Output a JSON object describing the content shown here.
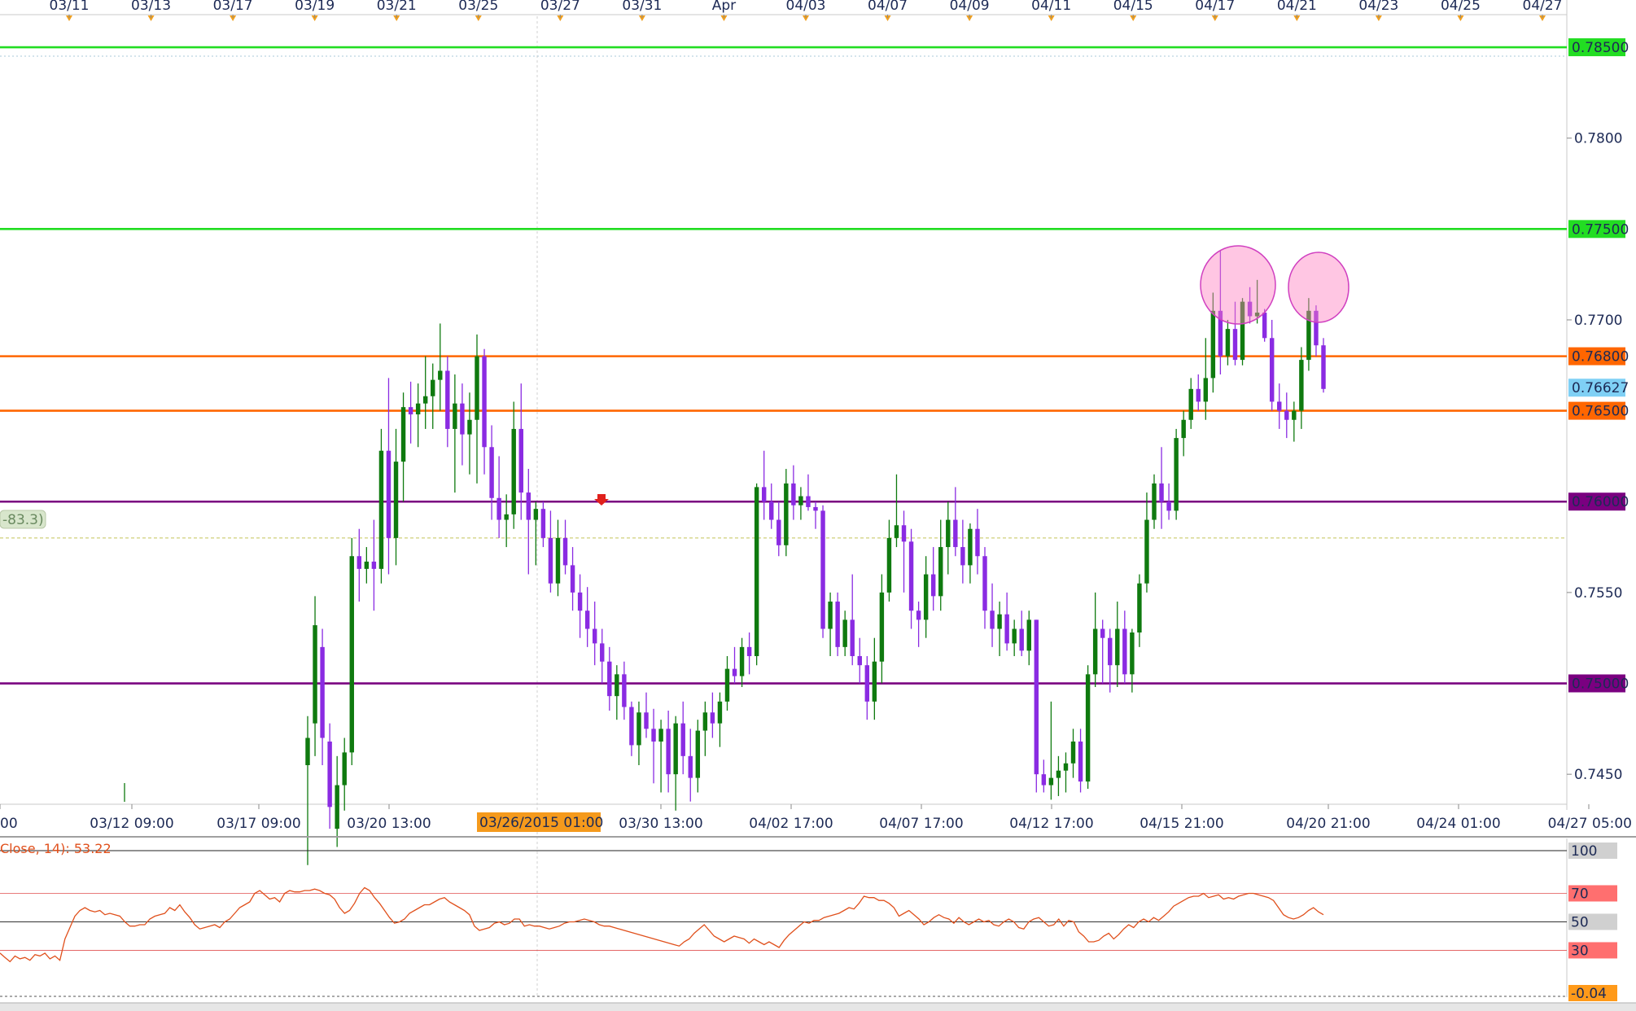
{
  "chart_data": {
    "type": "candlestick",
    "instrument_timeframe": "H4",
    "price_axis": {
      "ylim": [
        0.74335,
        0.7876
      ],
      "ticks": [
        "0.7450",
        "0.7550",
        "0.7700",
        "0.7800"
      ]
    },
    "levels": [
      {
        "price": 0.785,
        "label": "0.78500",
        "color": "#22dd22"
      },
      {
        "price": 0.775,
        "label": "0.77500",
        "color": "#22dd22"
      },
      {
        "price": 0.768,
        "label": "0.76800",
        "color": "#ff6600"
      },
      {
        "price": 0.765,
        "label": "0.76500",
        "color": "#ff6600"
      },
      {
        "price": 0.76,
        "label": "0.76000",
        "color": "#7a0080"
      },
      {
        "price": 0.75,
        "label": "0.75000",
        "color": "#7a0080"
      }
    ],
    "current_price": {
      "price": 0.76627,
      "label": "0.76627",
      "color": "#7fd0f5"
    },
    "reference_line": {
      "price": 0.758,
      "tag": "-83.3)"
    },
    "top_date_ticks": [
      "03/11",
      "03/13",
      "03/17",
      "03/19",
      "03/21",
      "03/25",
      "03/27",
      "03/31",
      "Apr",
      "04/03",
      "04/07",
      "04/09",
      "04/11",
      "04/15",
      "04/17",
      "04/21",
      "04/23",
      "04/25",
      "04/27"
    ],
    "bottom_time_ticks": [
      "00",
      "03/12 09:00",
      "03/17 09:00",
      "03/20 13:00",
      "03/30 13:00",
      "04/02 17:00",
      "04/07 17:00",
      "04/12 17:00",
      "04/15 21:00",
      "04/20 21:00",
      "04/24 01:00",
      "04/27 05:00"
    ],
    "cursor_label": "03/26/2015 01:00",
    "bull_color": "#0f7a0f",
    "bear_color": "#8a2be2",
    "candles": [
      [
        0.7455,
        0.7482,
        0.74,
        0.747
      ],
      [
        0.7478,
        0.7548,
        0.746,
        0.7532
      ],
      [
        0.752,
        0.753,
        0.7455,
        0.747
      ],
      [
        0.7468,
        0.7478,
        0.742,
        0.7432
      ],
      [
        0.742,
        0.746,
        0.741,
        0.7444
      ],
      [
        0.7444,
        0.747,
        0.743,
        0.7462
      ],
      [
        0.7462,
        0.758,
        0.7455,
        0.757
      ],
      [
        0.757,
        0.7585,
        0.7545,
        0.7563
      ],
      [
        0.7563,
        0.7575,
        0.7555,
        0.7567
      ],
      [
        0.7567,
        0.759,
        0.754,
        0.7563
      ],
      [
        0.7563,
        0.764,
        0.7555,
        0.7628
      ],
      [
        0.7628,
        0.7668,
        0.756,
        0.758
      ],
      [
        0.758,
        0.764,
        0.7565,
        0.7622
      ],
      [
        0.7622,
        0.766,
        0.76,
        0.7652
      ],
      [
        0.7652,
        0.7666,
        0.7632,
        0.7648
      ],
      [
        0.7648,
        0.7665,
        0.763,
        0.7654
      ],
      [
        0.7654,
        0.768,
        0.764,
        0.7658
      ],
      [
        0.7658,
        0.7676,
        0.764,
        0.7667
      ],
      [
        0.7667,
        0.7698,
        0.765,
        0.7672
      ],
      [
        0.7672,
        0.768,
        0.763,
        0.764
      ],
      [
        0.764,
        0.767,
        0.7605,
        0.7654
      ],
      [
        0.7654,
        0.7665,
        0.762,
        0.7637
      ],
      [
        0.7637,
        0.766,
        0.7615,
        0.7645
      ],
      [
        0.7645,
        0.7692,
        0.761,
        0.768
      ],
      [
        0.768,
        0.7684,
        0.7615,
        0.763
      ],
      [
        0.763,
        0.7642,
        0.759,
        0.7602
      ],
      [
        0.7602,
        0.7625,
        0.758,
        0.759
      ],
      [
        0.759,
        0.7604,
        0.7575,
        0.7593
      ],
      [
        0.7593,
        0.7655,
        0.7585,
        0.764
      ],
      [
        0.764,
        0.7665,
        0.759,
        0.7605
      ],
      [
        0.7605,
        0.7618,
        0.756,
        0.759
      ],
      [
        0.759,
        0.76,
        0.7565,
        0.7596
      ],
      [
        0.7596,
        0.76,
        0.7575,
        0.758
      ],
      [
        0.758,
        0.7595,
        0.755,
        0.7555
      ],
      [
        0.7555,
        0.759,
        0.7548,
        0.758
      ],
      [
        0.758,
        0.759,
        0.756,
        0.7565
      ],
      [
        0.7565,
        0.7575,
        0.754,
        0.755
      ],
      [
        0.755,
        0.756,
        0.7525,
        0.754
      ],
      [
        0.754,
        0.7553,
        0.752,
        0.753
      ],
      [
        0.753,
        0.7545,
        0.751,
        0.7522
      ],
      [
        0.7522,
        0.753,
        0.75,
        0.7512
      ],
      [
        0.7512,
        0.752,
        0.7485,
        0.7493
      ],
      [
        0.7493,
        0.751,
        0.748,
        0.7505
      ],
      [
        0.7505,
        0.7512,
        0.748,
        0.7487
      ],
      [
        0.7487,
        0.749,
        0.746,
        0.7466
      ],
      [
        0.7466,
        0.749,
        0.7455,
        0.7484
      ],
      [
        0.7484,
        0.7495,
        0.747,
        0.7475
      ],
      [
        0.7475,
        0.7486,
        0.7445,
        0.7468
      ],
      [
        0.7468,
        0.748,
        0.744,
        0.7475
      ],
      [
        0.7475,
        0.7485,
        0.744,
        0.745
      ],
      [
        0.745,
        0.7482,
        0.743,
        0.7478
      ],
      [
        0.7478,
        0.749,
        0.745,
        0.746
      ],
      [
        0.746,
        0.7475,
        0.7435,
        0.7448
      ],
      [
        0.7448,
        0.748,
        0.744,
        0.7474
      ],
      [
        0.7474,
        0.749,
        0.746,
        0.7484
      ],
      [
        0.7484,
        0.7495,
        0.747,
        0.7478
      ],
      [
        0.7478,
        0.7495,
        0.7465,
        0.749
      ],
      [
        0.749,
        0.7515,
        0.7485,
        0.7508
      ],
      [
        0.7508,
        0.752,
        0.75,
        0.7504
      ],
      [
        0.7504,
        0.7525,
        0.7498,
        0.752
      ],
      [
        0.752,
        0.7528,
        0.7505,
        0.7515
      ],
      [
        0.7515,
        0.761,
        0.751,
        0.7608
      ],
      [
        0.7608,
        0.7628,
        0.759,
        0.76
      ],
      [
        0.76,
        0.761,
        0.7585,
        0.759
      ],
      [
        0.759,
        0.76,
        0.757,
        0.7576
      ],
      [
        0.7576,
        0.7618,
        0.757,
        0.761
      ],
      [
        0.761,
        0.762,
        0.759,
        0.7598
      ],
      [
        0.7598,
        0.7608,
        0.759,
        0.7603
      ],
      [
        0.7603,
        0.7615,
        0.7595,
        0.7597
      ],
      [
        0.7597,
        0.76,
        0.7585,
        0.7595
      ],
      [
        0.7595,
        0.7598,
        0.7525,
        0.753
      ],
      [
        0.753,
        0.755,
        0.7515,
        0.7545
      ],
      [
        0.7545,
        0.755,
        0.7515,
        0.752
      ],
      [
        0.752,
        0.754,
        0.7515,
        0.7535
      ],
      [
        0.7535,
        0.756,
        0.751,
        0.7515
      ],
      [
        0.7515,
        0.7525,
        0.75,
        0.751
      ],
      [
        0.751,
        0.7515,
        0.748,
        0.749
      ],
      [
        0.749,
        0.7525,
        0.748,
        0.7512
      ],
      [
        0.7512,
        0.756,
        0.75,
        0.755
      ],
      [
        0.755,
        0.759,
        0.7545,
        0.758
      ],
      [
        0.758,
        0.7615,
        0.7575,
        0.7587
      ],
      [
        0.7587,
        0.7595,
        0.755,
        0.7578
      ],
      [
        0.7578,
        0.7585,
        0.753,
        0.754
      ],
      [
        0.754,
        0.7545,
        0.752,
        0.7535
      ],
      [
        0.7535,
        0.757,
        0.7525,
        0.756
      ],
      [
        0.756,
        0.7575,
        0.754,
        0.7548
      ],
      [
        0.7548,
        0.759,
        0.754,
        0.7575
      ],
      [
        0.7575,
        0.76,
        0.756,
        0.759
      ],
      [
        0.759,
        0.7608,
        0.757,
        0.7575
      ],
      [
        0.7575,
        0.759,
        0.7555,
        0.7565
      ],
      [
        0.7565,
        0.7588,
        0.7555,
        0.7585
      ],
      [
        0.7585,
        0.7596,
        0.756,
        0.757
      ],
      [
        0.757,
        0.7575,
        0.753,
        0.754
      ],
      [
        0.754,
        0.7555,
        0.752,
        0.753
      ],
      [
        0.753,
        0.7545,
        0.7515,
        0.7538
      ],
      [
        0.7538,
        0.755,
        0.7518,
        0.7522
      ],
      [
        0.7522,
        0.7535,
        0.7515,
        0.753
      ],
      [
        0.753,
        0.754,
        0.7515,
        0.7518
      ],
      [
        0.7518,
        0.754,
        0.751,
        0.7535
      ],
      [
        0.7535,
        0.7535,
        0.744,
        0.745
      ],
      [
        0.745,
        0.7458,
        0.744,
        0.7444
      ],
      [
        0.7444,
        0.749,
        0.7436,
        0.7448
      ],
      [
        0.7448,
        0.746,
        0.7438,
        0.7452
      ],
      [
        0.7452,
        0.7462,
        0.744,
        0.7456
      ],
      [
        0.7456,
        0.7475,
        0.7448,
        0.7468
      ],
      [
        0.7468,
        0.7475,
        0.744,
        0.7446
      ],
      [
        0.7446,
        0.751,
        0.7442,
        0.7505
      ],
      [
        0.7505,
        0.755,
        0.7498,
        0.753
      ],
      [
        0.753,
        0.7535,
        0.75,
        0.7525
      ],
      [
        0.7525,
        0.753,
        0.7495,
        0.751
      ],
      [
        0.751,
        0.7545,
        0.7498,
        0.753
      ],
      [
        0.753,
        0.754,
        0.75,
        0.7505
      ],
      [
        0.7505,
        0.753,
        0.7495,
        0.7528
      ],
      [
        0.7528,
        0.756,
        0.752,
        0.7555
      ],
      [
        0.7555,
        0.7605,
        0.755,
        0.759
      ],
      [
        0.759,
        0.7615,
        0.7585,
        0.761
      ],
      [
        0.761,
        0.763,
        0.7585,
        0.76
      ],
      [
        0.76,
        0.761,
        0.759,
        0.7595
      ],
      [
        0.7595,
        0.764,
        0.759,
        0.7635
      ],
      [
        0.7635,
        0.765,
        0.7625,
        0.7645
      ],
      [
        0.7645,
        0.7668,
        0.764,
        0.7662
      ],
      [
        0.7662,
        0.767,
        0.765,
        0.7655
      ],
      [
        0.7655,
        0.769,
        0.7645,
        0.7668
      ],
      [
        0.7668,
        0.7715,
        0.766,
        0.7705
      ],
      [
        0.7705,
        0.7738,
        0.767,
        0.768
      ],
      [
        0.768,
        0.77,
        0.7675,
        0.7695
      ],
      [
        0.7695,
        0.771,
        0.7675,
        0.7678
      ],
      [
        0.7678,
        0.7712,
        0.7675,
        0.771
      ],
      [
        0.771,
        0.7718,
        0.7698,
        0.7702
      ],
      [
        0.7702,
        0.7722,
        0.7698,
        0.7704
      ],
      [
        0.7704,
        0.7706,
        0.7688,
        0.769
      ],
      [
        0.769,
        0.77,
        0.765,
        0.7655
      ],
      [
        0.7655,
        0.7665,
        0.764,
        0.765
      ],
      [
        0.765,
        0.766,
        0.7635,
        0.7645
      ],
      [
        0.7645,
        0.7655,
        0.7633,
        0.765
      ],
      [
        0.765,
        0.7685,
        0.764,
        0.7678
      ],
      [
        0.7678,
        0.7712,
        0.7672,
        0.7705
      ],
      [
        0.7705,
        0.7708,
        0.768,
        0.7686
      ],
      [
        0.7686,
        0.769,
        0.766,
        0.7662
      ]
    ],
    "rsi": {
      "label": "Close, 14): 53.22",
      "levels": [
        {
          "value": 100,
          "label": "100",
          "color": "#d0d0d0"
        },
        {
          "value": 70,
          "label": "70",
          "color": "#ff6f6f"
        },
        {
          "value": 50,
          "label": "50",
          "color": "#d0d0d0"
        },
        {
          "value": 30,
          "label": "30",
          "color": "#ff6f6f"
        },
        {
          "value": -0.04,
          "label": "-0.04",
          "color": "#ff9a1a"
        }
      ],
      "line_color": "#e0501c",
      "values": [
        28,
        25,
        22,
        26,
        24,
        25,
        23,
        27,
        26,
        28,
        24,
        26,
        23,
        38,
        46,
        54,
        58,
        60,
        58,
        57,
        58,
        55,
        56,
        55,
        54,
        50,
        47,
        47,
        48,
        48,
        52,
        54,
        55,
        56,
        60,
        58,
        62,
        57,
        53,
        48,
        45,
        46,
        47,
        48,
        46,
        50,
        52,
        56,
        60,
        62,
        64,
        70,
        72,
        69,
        66,
        67,
        64,
        70,
        72,
        71,
        71,
        72,
        72,
        73,
        72,
        70,
        69,
        66,
        60,
        56,
        58,
        63,
        70,
        74,
        72,
        67,
        63,
        58,
        53,
        49,
        50,
        52,
        56,
        58,
        60,
        62,
        62,
        64,
        66,
        67,
        64,
        62,
        60,
        58,
        55,
        47,
        44,
        45,
        46,
        49,
        50,
        48,
        49,
        52,
        52,
        47,
        48,
        47,
        47,
        46,
        45,
        46,
        47,
        49,
        50,
        50,
        51,
        52,
        51,
        50,
        48,
        47,
        47,
        46,
        45,
        44,
        43,
        42,
        41,
        40,
        39,
        38,
        37,
        36,
        35,
        34,
        33,
        36,
        38,
        42,
        45,
        48,
        44,
        40,
        38,
        36,
        38,
        40,
        39,
        38,
        35,
        38,
        36,
        34,
        36,
        34,
        32,
        37,
        41,
        44,
        47,
        50,
        49,
        51,
        51,
        53,
        54,
        55,
        56,
        58,
        60,
        59,
        63,
        68,
        67,
        67,
        65,
        65,
        63,
        60,
        54,
        56,
        58,
        55,
        52,
        48,
        50,
        53,
        55,
        53,
        52,
        49,
        53,
        50,
        48,
        50,
        52,
        50,
        51,
        48,
        47,
        50,
        52,
        50,
        46,
        45,
        50,
        52,
        53,
        50,
        47,
        48,
        52,
        47,
        51,
        50,
        43,
        40,
        36,
        36,
        37,
        40,
        42,
        38,
        41,
        45,
        48,
        46,
        50,
        52,
        50,
        53,
        51,
        54,
        57,
        61,
        63,
        65,
        67,
        68,
        68,
        70,
        67,
        68,
        69,
        66,
        67,
        66,
        68,
        69,
        70,
        70,
        69,
        68,
        67,
        65,
        60,
        55,
        53,
        52,
        53,
        55,
        58,
        60,
        57,
        55
      ]
    }
  }
}
